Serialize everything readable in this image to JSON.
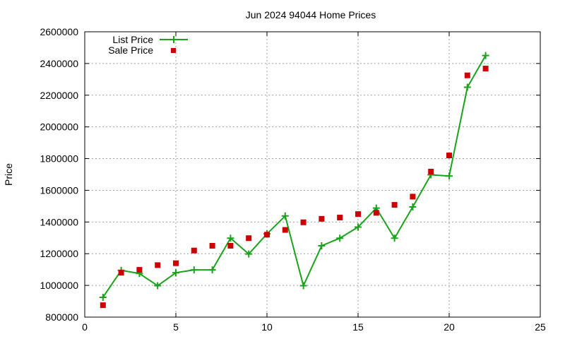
{
  "chart_data": {
    "type": "line",
    "title": "Jun 2024 94044 Home Prices",
    "xlabel": "",
    "ylabel": "Price",
    "xlim": [
      0,
      25
    ],
    "ylim": [
      800000,
      2600000
    ],
    "xticks": [
      0,
      5,
      10,
      15,
      20,
      25
    ],
    "yticks": [
      800000,
      1000000,
      1200000,
      1400000,
      1600000,
      1800000,
      2000000,
      2200000,
      2400000,
      2600000
    ],
    "grid": true,
    "legend_position": "top-left",
    "series": [
      {
        "name": "List Price",
        "style": "line-with-plus-markers",
        "color": "#1aa31a",
        "x": [
          1,
          2,
          3,
          4,
          5,
          6,
          7,
          8,
          9,
          10,
          11,
          12,
          13,
          14,
          15,
          16,
          17,
          18,
          19,
          20,
          21,
          22
        ],
        "y": [
          925000,
          1095000,
          1075000,
          998000,
          1080000,
          1098000,
          1098000,
          1298000,
          1198000,
          1325000,
          1438000,
          998000,
          1250000,
          1298000,
          1368000,
          1488000,
          1298000,
          1495000,
          1698000,
          1690000,
          2250000,
          2450000
        ]
      },
      {
        "name": "Sale Price",
        "style": "square-markers",
        "color": "#cc0000",
        "x": [
          1,
          2,
          3,
          4,
          5,
          6,
          7,
          8,
          9,
          10,
          11,
          12,
          13,
          14,
          15,
          16,
          17,
          18,
          19,
          20,
          21,
          22
        ],
        "y": [
          875000,
          1080000,
          1098000,
          1128000,
          1140000,
          1220000,
          1250000,
          1250000,
          1298000,
          1320000,
          1350000,
          1398000,
          1420000,
          1428000,
          1450000,
          1458000,
          1508000,
          1560000,
          1718000,
          1820000,
          2325000,
          2368000
        ]
      }
    ]
  }
}
